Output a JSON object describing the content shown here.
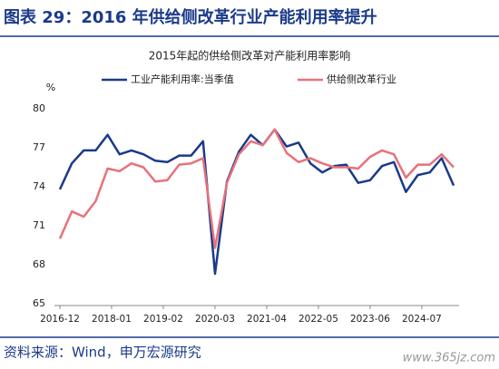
{
  "header": {
    "title": "图表 29：2016 年供给侧改革行业产能利用率提升"
  },
  "chart_data": {
    "type": "line",
    "title": "2015年起的供给侧改革对产能利用率影响",
    "y_unit": "%",
    "x": [
      "2016-12",
      "2017-03",
      "2017-06",
      "2017-09",
      "2017-12",
      "2018-03",
      "2018-06",
      "2018-09",
      "2018-12",
      "2019-03",
      "2019-06",
      "2019-09",
      "2019-12",
      "2020-03",
      "2020-06",
      "2020-09",
      "2020-12",
      "2021-03",
      "2021-06",
      "2021-09",
      "2021-12",
      "2022-03",
      "2022-06",
      "2022-09",
      "2022-12",
      "2023-03",
      "2023-06",
      "2023-09",
      "2023-12",
      "2024-03",
      "2024-06",
      "2024-09",
      "2024-12",
      "2025-03"
    ],
    "series": [
      {
        "name": "工业产能利用率:当季值",
        "color": "#1a3a8a",
        "values": [
          73.8,
          75.8,
          76.8,
          76.8,
          78.0,
          76.5,
          76.8,
          76.5,
          76.0,
          75.9,
          76.4,
          76.4,
          77.5,
          67.3,
          74.4,
          76.7,
          78.0,
          77.2,
          78.4,
          77.1,
          77.4,
          75.8,
          75.1,
          75.6,
          75.7,
          74.3,
          74.5,
          75.6,
          75.9,
          73.6,
          74.9,
          75.1,
          76.2,
          74.1
        ]
      },
      {
        "name": "供给侧改革行业",
        "color": "#e8717b",
        "values": [
          70.0,
          72.1,
          71.7,
          72.9,
          75.4,
          75.2,
          75.8,
          75.5,
          74.4,
          74.5,
          75.7,
          75.8,
          76.2,
          69.3,
          74.3,
          76.5,
          77.5,
          77.2,
          78.4,
          76.6,
          75.9,
          76.2,
          75.8,
          75.5,
          75.5,
          75.4,
          76.3,
          76.8,
          76.5,
          74.7,
          75.7,
          75.7,
          76.5,
          75.5
        ]
      }
    ],
    "xlim": [
      "2016-12",
      "2025-03"
    ],
    "xticks": [
      "2016-12",
      "2018-01",
      "2019-02",
      "2020-03",
      "2021-04",
      "2022-05",
      "2023-06",
      "2024-07"
    ],
    "ylim": [
      65,
      80
    ],
    "yticks": [
      65,
      68,
      71,
      74,
      77,
      80
    ],
    "grid": false,
    "legend": "top"
  },
  "footer": {
    "source": "资料来源：Wind，申万宏源研究",
    "watermark": "www.365jz.com"
  }
}
